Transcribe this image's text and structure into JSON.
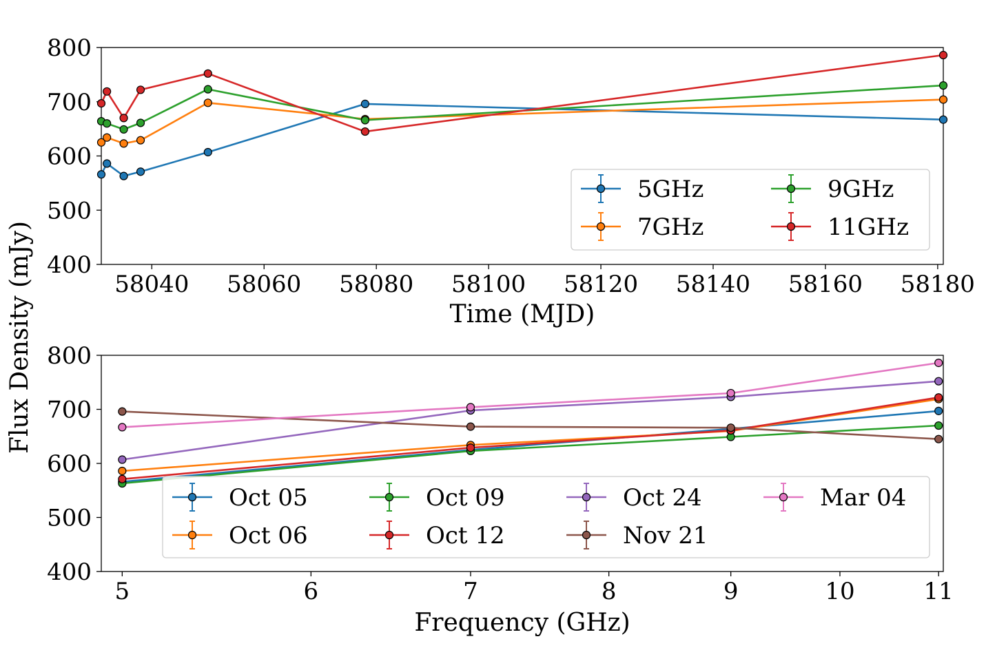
{
  "figure": {
    "shared_ylabel": "Flux Density (mJy)"
  },
  "chart_data": [
    {
      "type": "line",
      "xlabel": "Time (MJD)",
      "ylabel": "",
      "xlim": [
        58031,
        58181
      ],
      "ylim": [
        400,
        800
      ],
      "x_ticks": [
        58040,
        58060,
        58080,
        58100,
        58120,
        58140,
        58160,
        58180
      ],
      "y_ticks": [
        400,
        500,
        600,
        700,
        800
      ],
      "x_tick_labels": [
        "58040",
        "58060",
        "58080",
        "58100",
        "58120",
        "58140",
        "58160",
        "58180"
      ],
      "y_tick_labels": [
        "400",
        "500",
        "600",
        "700",
        "800"
      ],
      "x": [
        58031,
        58032,
        58035,
        58038,
        58050,
        58078,
        58181
      ],
      "error_bars": true,
      "legend": {
        "position": "lower-right",
        "columns": 2
      },
      "series": [
        {
          "name": "5GHz",
          "color": "#1f77b4",
          "values": [
            566,
            586,
            563,
            571,
            607,
            696,
            667
          ]
        },
        {
          "name": "7GHz",
          "color": "#ff7f0e",
          "values": [
            625,
            634,
            623,
            629,
            698,
            668,
            704
          ]
        },
        {
          "name": "9GHz",
          "color": "#2ca02c",
          "values": [
            664,
            660,
            649,
            661,
            723,
            666,
            730
          ]
        },
        {
          "name": "11GHz",
          "color": "#d62728",
          "values": [
            697,
            719,
            670,
            722,
            752,
            645,
            786
          ]
        }
      ]
    },
    {
      "type": "line",
      "xlabel": "Frequency (GHz)",
      "ylabel": "",
      "x_scale": "log",
      "xlim": [
        4.9,
        11.05
      ],
      "ylim": [
        400,
        800
      ],
      "x_ticks": [
        5,
        6,
        7,
        8,
        9,
        10,
        11
      ],
      "y_ticks": [
        400,
        500,
        600,
        700,
        800
      ],
      "x_tick_labels": [
        "5",
        "6",
        "7",
        "8",
        "9",
        "10",
        "11"
      ],
      "y_tick_labels": [
        "400",
        "500",
        "600",
        "700",
        "800"
      ],
      "x": [
        5,
        7,
        9,
        11
      ],
      "error_bars": true,
      "legend": {
        "position": "lower-center",
        "columns": 4
      },
      "series": [
        {
          "name": "Oct 05",
          "color": "#1f77b4",
          "values": [
            566,
            625,
            664,
            697
          ]
        },
        {
          "name": "Oct 06",
          "color": "#ff7f0e",
          "values": [
            586,
            634,
            660,
            719
          ]
        },
        {
          "name": "Oct 09",
          "color": "#2ca02c",
          "values": [
            563,
            623,
            649,
            670
          ]
        },
        {
          "name": "Oct 12",
          "color": "#d62728",
          "values": [
            571,
            629,
            661,
            722
          ]
        },
        {
          "name": "Oct 24",
          "color": "#9467bd",
          "values": [
            607,
            698,
            723,
            752
          ]
        },
        {
          "name": "Nov 21",
          "color": "#8c564b",
          "values": [
            696,
            668,
            666,
            645
          ]
        },
        {
          "name": "Mar 04",
          "color": "#e377c2",
          "values": [
            667,
            704,
            730,
            786
          ]
        }
      ]
    }
  ]
}
